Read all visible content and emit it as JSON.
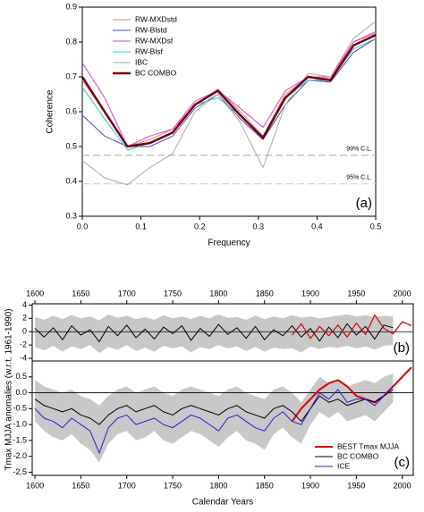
{
  "chart_data": [
    {
      "type": "line",
      "ylabel": "Coherence",
      "xlabel": "Frequency",
      "annotation": "(a)",
      "legend": "upper left",
      "x": [
        0,
        0.038,
        0.077,
        0.115,
        0.154,
        0.192,
        0.231,
        0.269,
        0.308,
        0.346,
        0.385,
        0.423,
        0.462,
        0.5
      ],
      "xlim": [
        0,
        0.5
      ],
      "ylim": [
        0.3,
        0.9
      ],
      "xticks": [
        {
          "value": 0,
          "label": "0.0"
        },
        0.1,
        0.2,
        0.3,
        0.4,
        0.5
      ],
      "yticks": [
        0.3,
        0.4,
        0.5,
        0.6,
        0.7,
        0.8,
        0.9
      ],
      "reference_lines": [
        {
          "value": 0.475,
          "label": "99% C.L.",
          "color": "#aaaaaa"
        },
        {
          "value": 0.393,
          "label": "95% C.L.",
          "color": "#cccccc"
        }
      ],
      "series": [
        {
          "name": "RW-MXDstd",
          "color": "#e8806e",
          "width": 1,
          "values": [
            0.69,
            0.6,
            0.5,
            0.52,
            0.55,
            0.62,
            0.665,
            0.6,
            0.53,
            0.65,
            0.7,
            0.695,
            0.8,
            0.825
          ]
        },
        {
          "name": "RW-Blstd",
          "color": "#4a4ad0",
          "width": 1,
          "values": [
            0.59,
            0.53,
            0.5,
            0.5,
            0.53,
            0.61,
            0.65,
            0.58,
            0.52,
            0.62,
            0.69,
            0.685,
            0.77,
            0.81
          ]
        },
        {
          "name": "RW-MXDsf",
          "color": "#e040e0",
          "width": 1,
          "values": [
            0.74,
            0.64,
            0.5,
            0.53,
            0.55,
            0.63,
            0.66,
            0.61,
            0.555,
            0.66,
            0.7,
            0.7,
            0.8,
            0.83
          ]
        },
        {
          "name": "RW-Blsf",
          "color": "#30c8e0",
          "width": 1,
          "values": [
            0.67,
            0.58,
            0.49,
            0.51,
            0.54,
            0.62,
            0.64,
            0.59,
            0.53,
            0.64,
            0.69,
            0.69,
            0.78,
            0.81
          ]
        },
        {
          "name": "IBC",
          "color": "#aaaaaa",
          "width": 1,
          "values": [
            0.46,
            0.41,
            0.39,
            0.44,
            0.48,
            0.6,
            0.65,
            0.57,
            0.44,
            0.62,
            0.71,
            0.7,
            0.81,
            0.86
          ]
        },
        {
          "name": "BC COMBO",
          "color": "#7a0010",
          "width": 2.5,
          "values": [
            0.7,
            0.6,
            0.5,
            0.51,
            0.54,
            0.62,
            0.66,
            0.59,
            0.525,
            0.64,
            0.7,
            0.69,
            0.79,
            0.82
          ]
        }
      ]
    },
    {
      "type": "line",
      "ylabel": "Tmax MJJA anomalies (w.r.t. 1961-1990)",
      "annotation": "(b)",
      "xaxis_position": "top",
      "zero_line": true,
      "x": [
        1600,
        1610,
        1620,
        1630,
        1640,
        1650,
        1660,
        1670,
        1680,
        1690,
        1700,
        1710,
        1720,
        1730,
        1740,
        1750,
        1760,
        1770,
        1780,
        1790,
        1800,
        1810,
        1820,
        1830,
        1840,
        1850,
        1860,
        1870,
        1880,
        1890,
        1900,
        1910,
        1920,
        1930,
        1940,
        1950,
        1960,
        1970,
        1980,
        1990,
        2000,
        2010
      ],
      "xlim": [
        1597,
        2012
      ],
      "ylim": [
        -4.4,
        4.2
      ],
      "xticks": [
        1600,
        1650,
        1700,
        1750,
        1800,
        1850,
        1900,
        1950,
        2000
      ],
      "yticks": [
        -4,
        -2,
        0,
        2,
        4
      ],
      "band": {
        "color": "#c8c8c8",
        "upper": [
          2.2,
          1.8,
          2.4,
          1.9,
          2.5,
          2.0,
          2.3,
          1.7,
          2.6,
          2.1,
          2.4,
          1.9,
          2.2,
          1.8,
          2.5,
          2.0,
          2.3,
          1.9,
          2.4,
          2.0,
          2.6,
          2.1,
          2.2,
          1.8,
          2.4,
          1.9,
          2.3,
          2.0,
          2.5,
          2.1,
          2.3,
          2.0,
          2.2,
          2.4,
          2.6,
          2.3,
          2.5,
          2.2,
          2.4,
          2.3,
          null,
          null
        ],
        "lower": [
          -2.3,
          -2.8,
          -2.1,
          -3.0,
          -2.2,
          -2.6,
          -2.0,
          -3.2,
          -2.3,
          -2.7,
          -2.0,
          -2.9,
          -2.4,
          -3.0,
          -2.1,
          -2.5,
          -2.2,
          -3.1,
          -2.3,
          -2.6,
          -2.0,
          -2.5,
          -2.2,
          -2.9,
          -2.3,
          -3.0,
          -2.4,
          -2.6,
          -2.5,
          -3.1,
          -2.2,
          -2.6,
          -2.3,
          -2.4,
          -2.1,
          -2.5,
          -2.2,
          -2.7,
          -2.1,
          -2.0,
          null,
          null
        ]
      },
      "series": [
        {
          "name": "BC COMBO",
          "color": "#000000",
          "width": 1,
          "values": [
            0.5,
            -0.8,
            0.6,
            -1.2,
            0.9,
            -0.5,
            0.3,
            -1.5,
            0.8,
            -0.6,
            1.0,
            -0.9,
            0.4,
            -1.1,
            0.7,
            -0.3,
            0.9,
            -1.3,
            0.5,
            -0.7,
            1.1,
            -0.4,
            0.6,
            -1.0,
            0.8,
            -1.2,
            0.3,
            -0.6,
            0.9,
            -0.8,
            0.5,
            -1.4,
            0.7,
            -0.9,
            1.2,
            -0.5,
            0.8,
            -1.1,
            1.0,
            0.6,
            null,
            null
          ]
        },
        {
          "name": "BEST Tmax MJJA",
          "color": "#e00000",
          "width": 1.2,
          "values": [
            null,
            null,
            null,
            null,
            null,
            null,
            null,
            null,
            null,
            null,
            null,
            null,
            null,
            null,
            null,
            null,
            null,
            null,
            null,
            null,
            null,
            null,
            null,
            null,
            null,
            null,
            null,
            null,
            -0.5,
            1.2,
            -1.0,
            0.8,
            -0.6,
            1.0,
            -0.8,
            1.3,
            -0.4,
            2.5,
            0.5,
            -0.3,
            1.5,
            0.9
          ]
        }
      ]
    },
    {
      "type": "line",
      "xlabel": "Calendar Years",
      "annotation": "(c)",
      "legend": "lower right",
      "zero_line": true,
      "x": [
        1600,
        1610,
        1620,
        1630,
        1640,
        1650,
        1660,
        1670,
        1680,
        1690,
        1700,
        1710,
        1720,
        1730,
        1740,
        1750,
        1760,
        1770,
        1780,
        1790,
        1800,
        1810,
        1820,
        1830,
        1840,
        1850,
        1860,
        1870,
        1880,
        1890,
        1900,
        1910,
        1920,
        1930,
        1940,
        1950,
        1960,
        1970,
        1980,
        1990,
        2000,
        2010
      ],
      "xlim": [
        1597,
        2012
      ],
      "ylim": [
        -2.6,
        1.0
      ],
      "xticks": [
        1600,
        1650,
        1700,
        1750,
        1800,
        1850,
        1900,
        1950,
        2000
      ],
      "yticks": [
        -2.5,
        {
          "value": -2,
          "label": "-2.0"
        },
        -1.5,
        {
          "value": -1,
          "label": "-1.0"
        },
        -0.5,
        {
          "value": 0,
          "label": "0.0"
        },
        0.5
      ],
      "band": {
        "color": "#c8c8c8",
        "upper": [
          0.4,
          0.2,
          0.1,
          0.0,
          0.1,
          -0.1,
          -0.2,
          -0.4,
          -0.1,
          0.1,
          0.2,
          0.0,
          0.1,
          0.2,
          0.0,
          -0.1,
          0.1,
          0.2,
          0.1,
          0.0,
          -0.1,
          0.1,
          0.2,
          0.0,
          -0.1,
          -0.2,
          0.1,
          0.2,
          0.0,
          -0.3,
          0.1,
          0.5,
          0.3,
          0.4,
          0.2,
          0.3,
          0.4,
          0.3,
          0.5,
          0.6,
          null,
          null
        ],
        "lower": [
          -0.9,
          -1.2,
          -1.4,
          -1.5,
          -1.3,
          -1.6,
          -1.8,
          -2.2,
          -1.6,
          -1.3,
          -1.2,
          -1.5,
          -1.4,
          -1.2,
          -1.5,
          -1.6,
          -1.4,
          -1.2,
          -1.3,
          -1.5,
          -1.7,
          -1.4,
          -1.2,
          -1.5,
          -1.6,
          -1.8,
          -1.3,
          -1.1,
          -1.4,
          -1.6,
          -1.0,
          -0.6,
          -0.8,
          -0.6,
          -0.9,
          -0.8,
          -0.7,
          -0.9,
          -0.6,
          -0.3,
          null,
          null
        ]
      },
      "series": [
        {
          "name": "BEST Tmax MJJA",
          "color": "#e00000",
          "width": 2,
          "values": [
            null,
            null,
            null,
            null,
            null,
            null,
            null,
            null,
            null,
            null,
            null,
            null,
            null,
            null,
            null,
            null,
            null,
            null,
            null,
            null,
            null,
            null,
            null,
            null,
            null,
            null,
            null,
            null,
            -0.9,
            -0.5,
            -0.2,
            0.1,
            0.3,
            0.4,
            0.2,
            -0.1,
            -0.2,
            -0.3,
            -0.1,
            0.2,
            0.5,
            0.8
          ]
        },
        {
          "name": "BC COMBO",
          "color": "#000000",
          "width": 1,
          "values": [
            -0.2,
            -0.4,
            -0.5,
            -0.6,
            -0.5,
            -0.7,
            -0.8,
            -1.0,
            -0.7,
            -0.5,
            -0.4,
            -0.6,
            -0.5,
            -0.4,
            -0.6,
            -0.7,
            -0.5,
            -0.4,
            -0.5,
            -0.6,
            -0.7,
            -0.5,
            -0.4,
            -0.6,
            -0.7,
            -0.8,
            -0.5,
            -0.4,
            -0.6,
            -0.9,
            -0.5,
            -0.1,
            -0.3,
            -0.2,
            -0.4,
            -0.3,
            -0.2,
            -0.3,
            -0.1,
            0.1,
            null,
            null
          ]
        },
        {
          "name": "ICE",
          "color": "#2020d0",
          "width": 1,
          "values": [
            -0.5,
            -0.8,
            -0.9,
            -1.1,
            -0.8,
            -1.0,
            -1.2,
            -1.9,
            -1.1,
            -0.8,
            -0.7,
            -1.0,
            -0.9,
            -0.8,
            -1.0,
            -1.1,
            -0.9,
            -0.7,
            -0.8,
            -1.0,
            -1.2,
            -0.8,
            -0.7,
            -0.9,
            -1.1,
            -1.2,
            -0.8,
            -0.6,
            -0.9,
            -1.0,
            -0.5,
            0.0,
            -0.2,
            0.1,
            -0.3,
            -0.2,
            -0.2,
            -0.4,
            -0.1,
            0.2,
            null,
            null
          ]
        }
      ]
    }
  ]
}
